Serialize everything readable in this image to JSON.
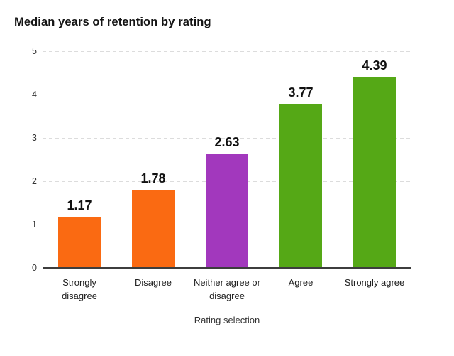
{
  "title": "Median years of retention by rating",
  "colors": {
    "background": "#ffffff",
    "orange": "#fa6a12",
    "purple": "#a238bd",
    "green": "#55a816",
    "gridline": "#dcdcdc",
    "axis_line": "#3d3d3d",
    "title_text": "#141414",
    "tick_text": "#333333",
    "value_text": "#111111"
  },
  "chart_data": {
    "type": "bar",
    "title": "Median years of retention by rating",
    "xlabel": "Rating selection",
    "ylabel": "",
    "categories": [
      "Strongly disagree",
      "Disagree",
      "Neither agree or disagree",
      "Agree",
      "Strongly agree"
    ],
    "values": [
      1.17,
      1.78,
      2.63,
      3.77,
      4.39
    ],
    "value_labels": [
      "1.17",
      "1.78",
      "2.63",
      "3.77",
      "4.39"
    ],
    "bar_colors": [
      "#fa6a12",
      "#fa6a12",
      "#a238bd",
      "#55a816",
      "#55a816"
    ],
    "ylim": [
      0,
      5
    ],
    "yticks": [
      0,
      1,
      2,
      3,
      4,
      5
    ],
    "grid": "horizontal-dashed",
    "legend": "none"
  }
}
